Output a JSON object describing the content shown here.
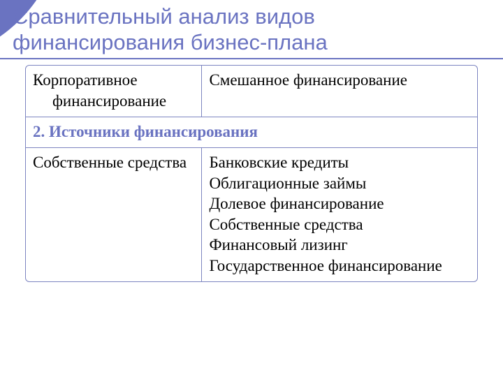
{
  "colors": {
    "accent": "#6a73c1",
    "underline": "#6a73c1",
    "table_border": "#7c84c0",
    "section_head_text": "#6a73c1",
    "body_text": "#000000",
    "background": "#ffffff"
  },
  "typography": {
    "title_font": "Arial",
    "title_size_pt": 24,
    "body_font": "Times New Roman",
    "body_size_pt": 18
  },
  "title": "Сравнительный анализ видов финансирования бизнес-плана",
  "table": {
    "columns": [
      "left",
      "right"
    ],
    "header_row": {
      "left": "Корпоративное финансирование",
      "right": "Смешанное финансирование"
    },
    "section_heading": "2. Источники финансирования",
    "body_row": {
      "left": "Собственные средства",
      "right_items": [
        "Банковские кредиты",
        "Облигационные займы",
        "Долевое финансирование",
        "Собственные средства",
        "Финансовый лизинг",
        "Государственное финансирование"
      ]
    }
  }
}
